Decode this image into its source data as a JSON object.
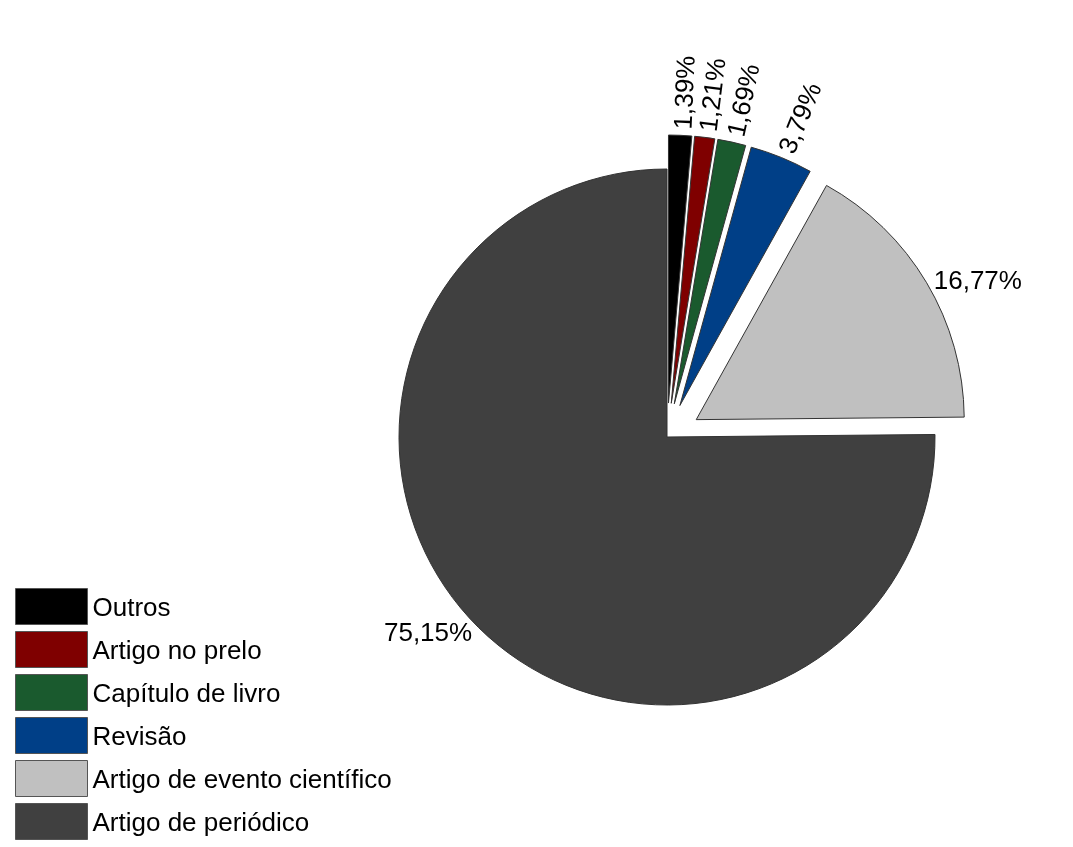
{
  "chart_data": {
    "type": "pie",
    "categories": [
      "Outros",
      "Artigo no prelo",
      "Capítulo de livro",
      "Revisão",
      "Artigo de evento científico",
      "Artigo de periódico"
    ],
    "values": [
      1.39,
      1.21,
      1.69,
      3.79,
      16.77,
      75.15
    ],
    "colors": [
      "#000000",
      "#7f0000",
      "#1a5a2e",
      "#003f87",
      "#c0c0c0",
      "#404040"
    ],
    "value_labels": [
      "1,39%",
      "1,21%",
      "1,69%",
      "3,79%",
      "16,77%",
      "75,15%"
    ],
    "legend": "bottom left"
  }
}
